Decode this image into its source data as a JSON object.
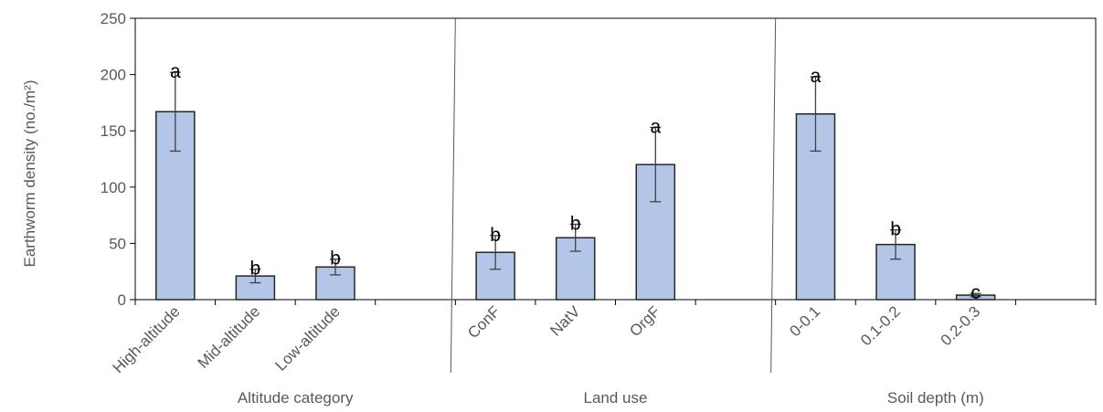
{
  "chart_data": {
    "type": "bar",
    "ylabel": "Earthworm density (no./m²)",
    "ylim": [
      0,
      250
    ],
    "yticks": [
      0,
      50,
      100,
      150,
      200,
      250
    ],
    "grid": false,
    "bar_color": "#b4c6e7",
    "bar_edge_color": "#262626",
    "groups": [
      {
        "label": "Altitude category",
        "categories": [
          "High-altitude",
          "Mid-altitude",
          "Low-altitude"
        ],
        "values": [
          167,
          21,
          29
        ],
        "error": [
          35,
          6,
          7
        ],
        "letters": [
          "a",
          "b",
          "b"
        ]
      },
      {
        "label": "Land use",
        "categories": [
          "ConF",
          "NatV",
          "OrgF"
        ],
        "values": [
          42,
          55,
          120
        ],
        "error": [
          15,
          12,
          33
        ],
        "letters": [
          "b",
          "b",
          "a"
        ]
      },
      {
        "label": "Soil depth (m)",
        "categories": [
          "0-0.1",
          "0.1-0.2",
          "0.2-0.3"
        ],
        "values": [
          165,
          49,
          4
        ],
        "error": [
          33,
          13,
          1.5
        ],
        "letters": [
          "a",
          "b",
          "c"
        ]
      }
    ]
  }
}
